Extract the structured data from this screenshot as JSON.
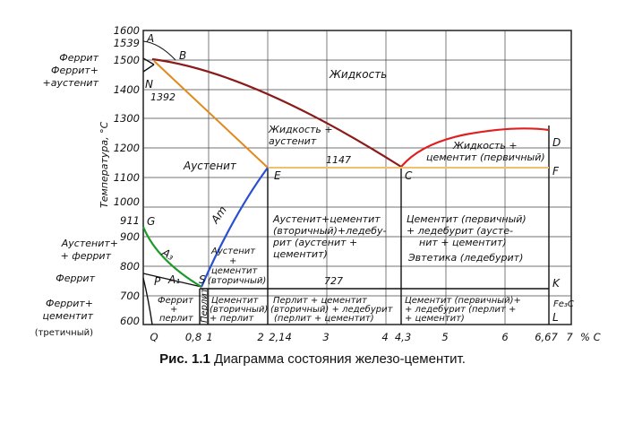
{
  "figure": {
    "caption_prefix": "Рис. 1.1",
    "caption_text": "Диаграмма состояния железо-цементит.",
    "y_axis_title": "Температура, °С",
    "x_unit": "% С"
  },
  "y_ticks": [
    "1600",
    "1539",
    "1500",
    "1400",
    "1300",
    "1200",
    "1100",
    "1000",
    "911",
    "900",
    "800",
    "700",
    "600"
  ],
  "x_ticks": [
    "Q",
    "0,8",
    "1",
    "2",
    "2,14",
    "3",
    "4",
    "4,3",
    "5",
    "6",
    "6,67",
    "7"
  ],
  "points": {
    "A": "A",
    "B": "B",
    "N": "N",
    "D": "D",
    "E": "E",
    "C": "C",
    "F": "F",
    "G": "G",
    "P": "P",
    "S": "S",
    "K": "K",
    "Q": "Q",
    "L": "L",
    "A1": "A₁",
    "A3": "A₃",
    "Am": "Am",
    "FeC": "Fe₃C"
  },
  "isotherms": {
    "t1392": "1392",
    "t1147": "1147",
    "t727": "727"
  },
  "left_labels": {
    "ferrite_top": "Феррит",
    "ferrite_aus_1": "Феррит+",
    "ferrite_aus_2": "+аустенит",
    "aus_ferrite_1": "Аустенит+",
    "aus_ferrite_2": "+ феррит",
    "ferrite_mid": "Феррит",
    "ferrite_cem_1": "Феррит+",
    "ferrite_cem_2": "цементит",
    "tertiary": "(третичный)"
  },
  "regions": {
    "liquid": "Жидкость",
    "liq_aus_1": "Жидкость +",
    "liq_aus_2": "аустенит",
    "liq_cem_1": "Жидкость +",
    "liq_cem_2": "цементит (первичный)",
    "austenite": "Аустенит",
    "aus_cem2_1": "Аустенит+цементит",
    "aus_cem2_2": "(вторичный)+ледебу-",
    "aus_cem2_3": "рит (аустенит +",
    "aus_cem2_4": "цементит)",
    "cem1_led_1": "Цементит (первичный)",
    "cem1_led_2": "+ ледебурит (аусте-",
    "cem1_led_3": "нит + цементит)",
    "eutectic": "Эвтетика (ледебурит)",
    "aus_cemII_1": "Аустенит",
    "aus_cemII_2": "+",
    "aus_cemII_3": "цементит",
    "aus_cemII_4": "(вторичный)",
    "fp_1": "Феррит",
    "fp_2": "+",
    "fp_3": "перлит",
    "pearlite": "Перлит",
    "cp_1": "Цементит",
    "cp_2": "(вторичный)",
    "cp_3": "+ перлит",
    "pcl_1": "Перлит + цементит",
    "pcl_2": "(вторичный) + ледебурит",
    "pcl_3": "(перлит + цементит)",
    "cl_1": "Цементит (первичный)+",
    "cl_2": "+ ледебурит (перлит +",
    "cl_3": "+ цементит)"
  },
  "colors": {
    "liquidus": "#8b1a1a",
    "liquidus_cem": "#e02020",
    "solidus": "#e08a1e",
    "eutectic_line": "#f0c070",
    "acm": "#2850d0",
    "a3": "#1f9a2a",
    "grid": "#222222"
  }
}
